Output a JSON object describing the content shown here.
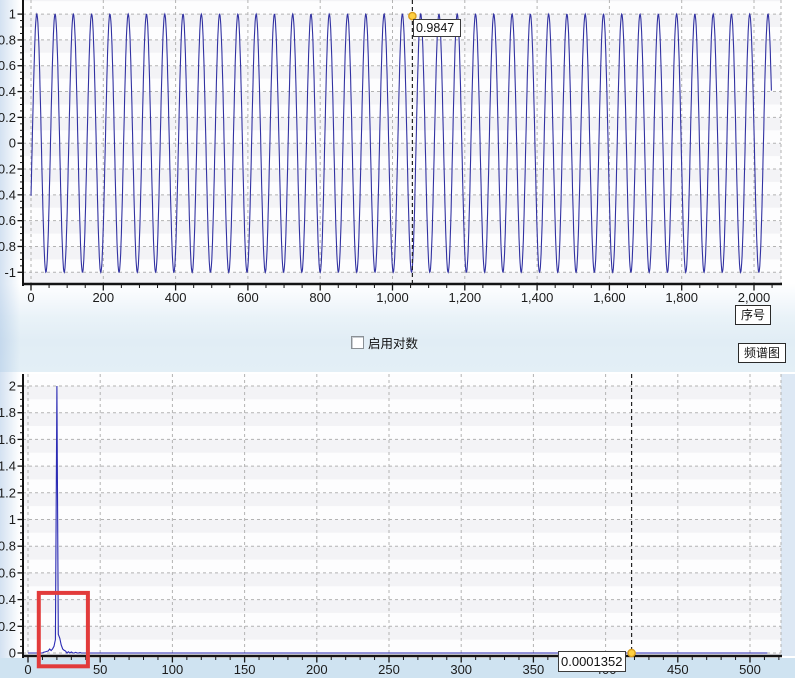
{
  "labels": {
    "series_axis_label": "序号",
    "spectrum_label": "频谱图",
    "log_checkbox_label": "启用对数"
  },
  "checkbox": {
    "checked": false
  },
  "colors": {
    "wave": "#3232a2",
    "spectrum": "#2b2bb4",
    "grid": "#b3b3b3",
    "axis": "#141414",
    "tick_label": "#1b1b1b",
    "cursor_line": "#222222",
    "cursor_dot_fill": "#ffd040",
    "cursor_dot_stroke": "#d89e1e",
    "annotation_red": "#e23b3b",
    "footer_blue": "#cfe3f1",
    "right_strip_blue": "#dde8f4",
    "band_light": "#fdfdfe",
    "band_dark": "#f3f3f6"
  },
  "chart_data": [
    {
      "type": "line",
      "name": "time-domain-waveform",
      "xlabel": "序号",
      "x_ticks": [
        0,
        200,
        400,
        600,
        800,
        1000,
        1200,
        1400,
        1600,
        1800,
        2000
      ],
      "x_tick_labels": [
        "0",
        "200",
        "400",
        "600",
        "800",
        "1,000",
        "1,200",
        "1,400",
        "1,600",
        "1,800",
        "2,000"
      ],
      "x_minor_step": 50,
      "y_ticks": [
        -1,
        -0.8,
        -0.6,
        -0.4,
        -0.2,
        0,
        0.2,
        0.4,
        0.6,
        0.8,
        1
      ],
      "y_tick_labels": [
        "-1",
        "-0.8",
        "-0.6",
        "-0.4",
        "-0.2",
        "0",
        "0.2",
        "0.4",
        "0.6",
        "0.8",
        "1"
      ],
      "y_minor_step": 0.05,
      "xlim": [
        -20,
        2075
      ],
      "ylim": [
        -1.09,
        1.11
      ],
      "grid": true,
      "legend": "none",
      "signal": {
        "shape": "sine",
        "amplitude": 1,
        "n_samples": 2048,
        "cycles": 40.5,
        "phase_rad": -0.42
      },
      "cursor": {
        "x": 1055,
        "value": 0.9847,
        "label": "0.9847"
      }
    },
    {
      "type": "line",
      "name": "fft-spectrum",
      "x_ticks": [
        0,
        50,
        100,
        150,
        200,
        250,
        300,
        350,
        400,
        450,
        500
      ],
      "x_tick_labels": [
        "0",
        "50",
        "100",
        "150",
        "200",
        "250",
        "300",
        "350",
        "400",
        "450",
        "500"
      ],
      "x_minor_step": 10,
      "y_ticks": [
        0,
        0.2,
        0.4,
        0.6,
        0.8,
        1,
        1.2,
        1.4,
        1.6,
        1.8,
        2
      ],
      "y_tick_labels": [
        "0",
        "0.2",
        "0.4",
        "0.6",
        "0.8",
        "1",
        "1.2",
        "1.4",
        "1.6",
        "1.8",
        "2"
      ],
      "y_minor_step": 0.05,
      "xlim": [
        -4,
        519
      ],
      "ylim": [
        -0.02,
        2.09
      ],
      "grid": true,
      "legend": "none",
      "n_bins": 512,
      "peak_points": [
        [
          11,
          0.006
        ],
        [
          12,
          0.008
        ],
        [
          13,
          0.012
        ],
        [
          14,
          0.015
        ],
        [
          15,
          0.03
        ],
        [
          16,
          0.018
        ],
        [
          17,
          0.03
        ],
        [
          18,
          0.05
        ],
        [
          19,
          0.1
        ],
        [
          20,
          2.0
        ],
        [
          21,
          0.14
        ],
        [
          22,
          0.11
        ],
        [
          23,
          0.06
        ],
        [
          24,
          0.03
        ],
        [
          25,
          0.02
        ],
        [
          26,
          0.015
        ],
        [
          28,
          0.01
        ],
        [
          30,
          0.008
        ],
        [
          33,
          0.005
        ],
        [
          36,
          0.003
        ]
      ],
      "cursor": {
        "x": 418,
        "value": 0.0001352,
        "label": "0.0001352"
      },
      "annotation_rect": {
        "x": [
          7.5,
          41.5
        ],
        "y": [
          -0.1,
          0.45
        ]
      }
    }
  ]
}
